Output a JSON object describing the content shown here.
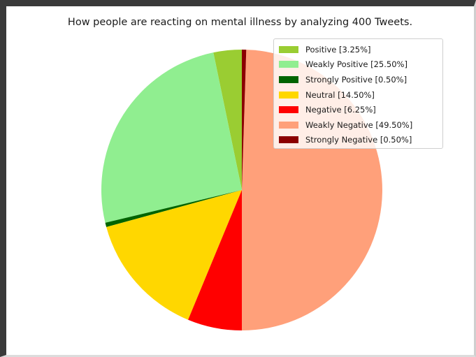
{
  "chart_data": {
    "type": "pie",
    "title": "How people are reacting on mental illness by analyzing 400 Tweets.",
    "legend_position": "top-right",
    "start_angle_deg": 90,
    "direction": "counterclockwise",
    "slices": [
      {
        "label": "Positive [3.25%]",
        "value": 3.25,
        "color": "#9acd32"
      },
      {
        "label": "Weakly Positive [25.50%]",
        "value": 25.5,
        "color": "#90ee90"
      },
      {
        "label": "Strongly Positive [0.50%]",
        "value": 0.5,
        "color": "#006400"
      },
      {
        "label": "Neutral [14.50%]",
        "value": 14.5,
        "color": "#ffd700"
      },
      {
        "label": "Negative [6.25%]",
        "value": 6.25,
        "color": "#ff0000"
      },
      {
        "label": "Weakly Negative [49.50%]",
        "value": 49.5,
        "color": "#ffa07a"
      },
      {
        "label": "Strongly Negative [0.50%]",
        "value": 0.5,
        "color": "#8b0000"
      }
    ]
  }
}
